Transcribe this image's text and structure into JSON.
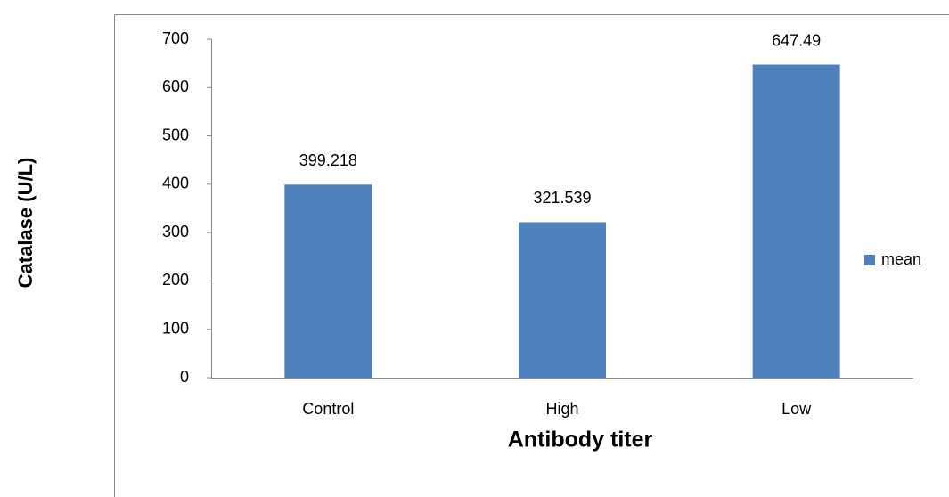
{
  "chart_data": {
    "type": "bar",
    "x_label": "Antibody titer",
    "y_label": "Catalase (U/L)",
    "categories": [
      "Control",
      "High",
      "Low"
    ],
    "series": [
      {
        "name": "mean",
        "color": "#4f81bd",
        "values": [
          399.218,
          321.539,
          647.49
        ]
      }
    ],
    "ylim": [
      0,
      700
    ],
    "yticks": [
      0,
      100,
      200,
      300,
      400,
      500,
      600,
      700
    ],
    "legend": "right",
    "grid": false
  }
}
